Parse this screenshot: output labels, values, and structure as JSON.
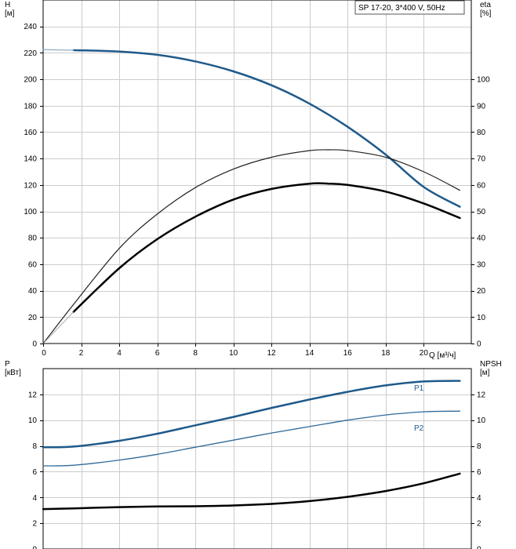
{
  "chart_data": [
    {
      "type": "line",
      "panel": "top",
      "title": "SP 17-20, 3*400 V, 50Hz",
      "xlabel": "Q [м³/ч]",
      "ylabel": "H\n[м]",
      "y2label": "eta\n[%]",
      "xlim": [
        0,
        22.5
      ],
      "ylim": [
        0,
        260
      ],
      "y2lim": [
        0,
        130
      ],
      "x_ticks": [
        0,
        2,
        4,
        6,
        8,
        10,
        12,
        14,
        16,
        18,
        20
      ],
      "y_ticks": [
        0,
        20,
        40,
        60,
        80,
        100,
        120,
        140,
        160,
        180,
        200,
        220,
        240
      ],
      "y2_ticks": [
        0,
        10,
        20,
        30,
        40,
        50,
        60,
        70,
        80,
        90,
        100
      ],
      "grid": true,
      "series": [
        {
          "role": "H",
          "axis": "left",
          "color": "#1f5a8a",
          "width": 2.5,
          "x": [
            1.6,
            4,
            6,
            8,
            10,
            12,
            14,
            16,
            18,
            20,
            21.9
          ],
          "y": [
            222,
            221,
            218.5,
            213.5,
            206,
            195.5,
            181.5,
            164,
            143,
            118.5,
            103.5
          ]
        },
        {
          "role": "H-extension",
          "axis": "left",
          "color": "#8aa7c0",
          "width": 1.2,
          "x": [
            0,
            0.8,
            1.6
          ],
          "y": [
            222.5,
            222.2,
            222
          ]
        },
        {
          "role": "eta",
          "axis": "right",
          "color": "#222222",
          "width": 1.2,
          "x": [
            0,
            1.6,
            4,
            6,
            8,
            10,
            12,
            14,
            15,
            16,
            18,
            20,
            21.9
          ],
          "y": [
            0,
            14.8,
            36,
            49,
            59,
            66,
            70.5,
            73,
            73.3,
            73,
            70.5,
            65,
            58
          ]
        },
        {
          "role": "eta-pump",
          "axis": "right",
          "color": "#000000",
          "width": 2.5,
          "x": [
            1.6,
            4,
            6,
            8,
            10,
            12,
            14,
            15,
            16,
            18,
            20,
            21.9
          ],
          "y": [
            12,
            28.5,
            39.5,
            48,
            54.5,
            58.5,
            60.5,
            60.5,
            60,
            57.5,
            53,
            47.5
          ]
        },
        {
          "role": "eta-extension",
          "axis": "right",
          "color": "#999999",
          "width": 0.8,
          "x": [
            0,
            1.6
          ],
          "y": [
            0,
            12
          ]
        }
      ]
    },
    {
      "type": "line",
      "panel": "bottom",
      "ylabel": "P\n[кВт]",
      "y2label": "NPSH\n[м]",
      "xlim": [
        0,
        22.5
      ],
      "ylim": [
        0,
        14
      ],
      "y2lim": [
        0,
        14
      ],
      "y_ticks": [
        0,
        2,
        4,
        6,
        8,
        10,
        12
      ],
      "y2_ticks": [
        0,
        2,
        4,
        6,
        8,
        10,
        12
      ],
      "grid": true,
      "series": [
        {
          "name": "P1",
          "axis": "left",
          "color": "#1f5a8a",
          "width": 2.5,
          "x": [
            0,
            1.6,
            4,
            6,
            8,
            10,
            12,
            14,
            16,
            18,
            20,
            21.9
          ],
          "y": [
            7.9,
            7.95,
            8.4,
            8.95,
            9.6,
            10.25,
            10.95,
            11.6,
            12.2,
            12.7,
            13.0,
            13.05
          ]
        },
        {
          "name": "P2",
          "axis": "left",
          "color": "#2f6a9a",
          "width": 1.3,
          "x": [
            0,
            1.6,
            4,
            6,
            8,
            10,
            12,
            14,
            16,
            18,
            20,
            21.9
          ],
          "y": [
            6.45,
            6.5,
            6.9,
            7.35,
            7.9,
            8.45,
            9.0,
            9.5,
            10.0,
            10.4,
            10.65,
            10.7
          ]
        },
        {
          "role": "NPSH",
          "axis": "right",
          "color": "#000000",
          "width": 2.5,
          "x": [
            0,
            1.6,
            4,
            6,
            8,
            10,
            12,
            14,
            16,
            18,
            20,
            21.9
          ],
          "y": [
            3.1,
            3.15,
            3.25,
            3.3,
            3.32,
            3.38,
            3.5,
            3.72,
            4.05,
            4.5,
            5.1,
            5.85
          ]
        }
      ]
    }
  ]
}
